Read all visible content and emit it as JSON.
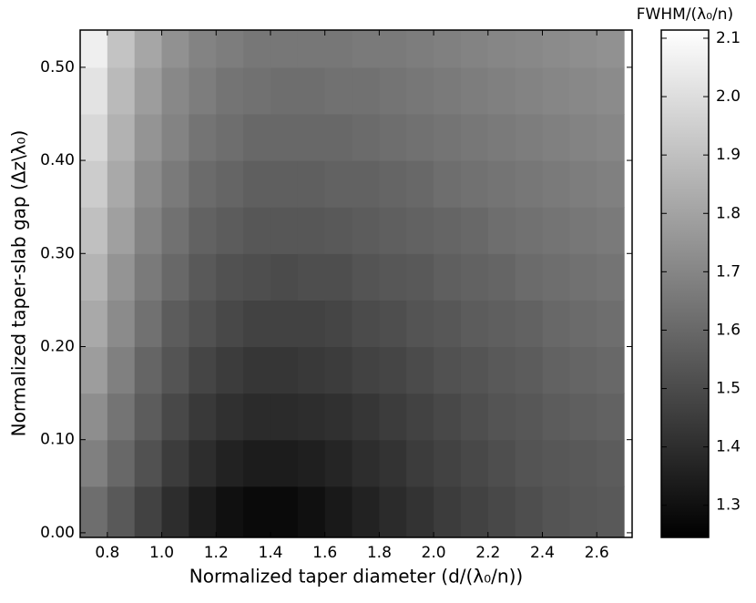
{
  "chart_data": {
    "type": "heatmap",
    "xlabel": "Normalized taper diameter (d/(λ₀/n))",
    "ylabel": "Normalized taper-slab gap (Δz\\λ₀)",
    "colorbar_label": "FWHM/(λ₀/n)",
    "x": [
      0.75,
      0.85,
      0.95,
      1.05,
      1.15,
      1.25,
      1.35,
      1.45,
      1.55,
      1.65,
      1.75,
      1.85,
      1.95,
      2.05,
      2.15,
      2.25,
      2.35,
      2.45,
      2.55,
      2.65
    ],
    "y": [
      0.025,
      0.075,
      0.125,
      0.175,
      0.225,
      0.275,
      0.325,
      0.375,
      0.425,
      0.475,
      0.525
    ],
    "values": [
      [
        1.62,
        1.55,
        1.47,
        1.4,
        1.34,
        1.3,
        1.28,
        1.28,
        1.3,
        1.33,
        1.36,
        1.39,
        1.42,
        1.45,
        1.47,
        1.49,
        1.51,
        1.53,
        1.54,
        1.55
      ],
      [
        1.68,
        1.6,
        1.52,
        1.45,
        1.4,
        1.36,
        1.34,
        1.34,
        1.35,
        1.37,
        1.4,
        1.42,
        1.45,
        1.47,
        1.49,
        1.51,
        1.53,
        1.54,
        1.55,
        1.56
      ],
      [
        1.73,
        1.64,
        1.56,
        1.49,
        1.44,
        1.41,
        1.39,
        1.39,
        1.4,
        1.41,
        1.43,
        1.45,
        1.47,
        1.49,
        1.51,
        1.53,
        1.54,
        1.56,
        1.57,
        1.58
      ],
      [
        1.78,
        1.68,
        1.59,
        1.53,
        1.48,
        1.45,
        1.43,
        1.43,
        1.44,
        1.45,
        1.47,
        1.48,
        1.5,
        1.52,
        1.53,
        1.55,
        1.56,
        1.58,
        1.59,
        1.6
      ],
      [
        1.82,
        1.72,
        1.63,
        1.56,
        1.52,
        1.49,
        1.47,
        1.47,
        1.47,
        1.48,
        1.5,
        1.51,
        1.53,
        1.54,
        1.56,
        1.57,
        1.58,
        1.6,
        1.61,
        1.62
      ],
      [
        1.86,
        1.75,
        1.66,
        1.6,
        1.55,
        1.52,
        1.51,
        1.5,
        1.51,
        1.51,
        1.53,
        1.54,
        1.55,
        1.57,
        1.58,
        1.59,
        1.61,
        1.62,
        1.63,
        1.64
      ],
      [
        1.9,
        1.79,
        1.69,
        1.63,
        1.58,
        1.56,
        1.54,
        1.54,
        1.54,
        1.55,
        1.56,
        1.57,
        1.58,
        1.59,
        1.6,
        1.62,
        1.63,
        1.64,
        1.65,
        1.66
      ],
      [
        1.94,
        1.82,
        1.72,
        1.66,
        1.61,
        1.59,
        1.57,
        1.57,
        1.57,
        1.58,
        1.58,
        1.59,
        1.6,
        1.62,
        1.63,
        1.64,
        1.65,
        1.66,
        1.67,
        1.68
      ],
      [
        1.98,
        1.85,
        1.75,
        1.69,
        1.64,
        1.62,
        1.6,
        1.6,
        1.6,
        1.6,
        1.61,
        1.62,
        1.63,
        1.64,
        1.65,
        1.66,
        1.67,
        1.68,
        1.69,
        1.7
      ],
      [
        2.02,
        1.88,
        1.78,
        1.71,
        1.67,
        1.64,
        1.63,
        1.62,
        1.62,
        1.63,
        1.63,
        1.64,
        1.65,
        1.66,
        1.67,
        1.68,
        1.69,
        1.7,
        1.71,
        1.72
      ],
      [
        2.06,
        1.91,
        1.81,
        1.74,
        1.69,
        1.67,
        1.65,
        1.65,
        1.65,
        1.65,
        1.66,
        1.66,
        1.67,
        1.68,
        1.69,
        1.7,
        1.71,
        1.72,
        1.73,
        1.74
      ]
    ],
    "xlim": [
      0.7,
      2.73
    ],
    "ylim": [
      -0.005,
      0.54
    ],
    "zlim": [
      1.245,
      2.114
    ],
    "colorscale": [
      "#000000",
      "#ffffff"
    ],
    "xticks": [
      {
        "value": 0.8,
        "label": "0.8"
      },
      {
        "value": 1,
        "label": "1.0"
      },
      {
        "value": 1.2,
        "label": "1.2"
      },
      {
        "value": 1.4,
        "label": "1.4"
      },
      {
        "value": 1.6,
        "label": "1.6"
      },
      {
        "value": 1.8,
        "label": "1.8"
      },
      {
        "value": 2,
        "label": "2.0"
      },
      {
        "value": 2.2,
        "label": "2.2"
      },
      {
        "value": 2.4,
        "label": "2.4"
      },
      {
        "value": 2.6,
        "label": "2.6"
      }
    ],
    "yticks": [
      {
        "value": 0,
        "label": "0.00"
      },
      {
        "value": 0.1,
        "label": "0.10"
      },
      {
        "value": 0.2,
        "label": "0.20"
      },
      {
        "value": 0.3,
        "label": "0.30"
      },
      {
        "value": 0.4,
        "label": "0.40"
      },
      {
        "value": 0.5,
        "label": "0.50"
      }
    ],
    "zticks": [
      1.3,
      1.4,
      1.5,
      1.6,
      1.7,
      1.8,
      1.9,
      {
        "value": 2,
        "label": "2.0"
      },
      2.1
    ]
  }
}
